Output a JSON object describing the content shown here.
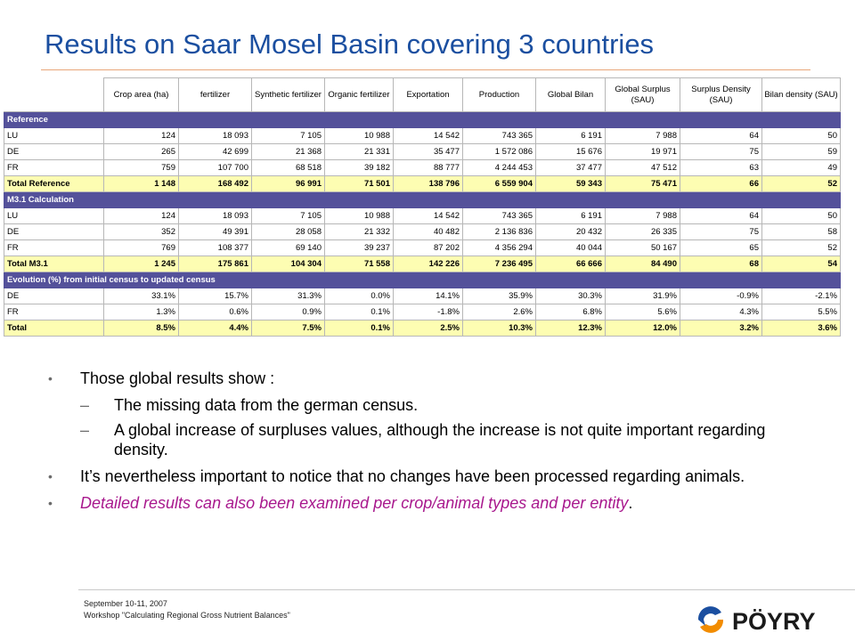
{
  "title": "Results on Saar Mosel Basin covering 3 countries",
  "table": {
    "headers": [
      "Crop area (ha)",
      "fertilizer",
      "Synthetic fertilizer",
      "Organic fertilizer",
      "Exportation",
      "Production",
      "Global Bilan",
      "Global Surplus (SAU)",
      "Surplus Density (SAU)",
      "Bilan density (SAU)"
    ],
    "sections": [
      {
        "label": "Reference",
        "rows": [
          {
            "label": "LU",
            "values": [
              "124",
              "18 093",
              "7 105",
              "10 988",
              "14 542",
              "743 365",
              "6 191",
              "7 988",
              "64",
              "50"
            ]
          },
          {
            "label": "DE",
            "values": [
              "265",
              "42 699",
              "21 368",
              "21 331",
              "35 477",
              "1 572 086",
              "15 676",
              "19 971",
              "75",
              "59"
            ]
          },
          {
            "label": "FR",
            "values": [
              "759",
              "107 700",
              "68 518",
              "39 182",
              "88 777",
              "4 244 453",
              "37 477",
              "47 512",
              "63",
              "49"
            ]
          }
        ],
        "total": {
          "label": "Total Reference",
          "values": [
            "1 148",
            "168 492",
            "96 991",
            "71 501",
            "138 796",
            "6 559 904",
            "59 343",
            "75 471",
            "66",
            "52"
          ]
        }
      },
      {
        "label": "M3.1 Calculation",
        "rows": [
          {
            "label": "LU",
            "values": [
              "124",
              "18 093",
              "7 105",
              "10 988",
              "14 542",
              "743 365",
              "6 191",
              "7 988",
              "64",
              "50"
            ]
          },
          {
            "label": "DE",
            "values": [
              "352",
              "49 391",
              "28 058",
              "21 332",
              "40 482",
              "2 136 836",
              "20 432",
              "26 335",
              "75",
              "58"
            ]
          },
          {
            "label": "FR",
            "values": [
              "769",
              "108 377",
              "69 140",
              "39 237",
              "87 202",
              "4 356 294",
              "40 044",
              "50 167",
              "65",
              "52"
            ]
          }
        ],
        "total": {
          "label": "Total M3.1",
          "values": [
            "1 245",
            "175 861",
            "104 304",
            "71 558",
            "142 226",
            "7 236 495",
            "66 666",
            "84 490",
            "68",
            "54"
          ]
        }
      },
      {
        "label": "Evolution (%) from initial census to updated census",
        "rows": [
          {
            "label": "DE",
            "values": [
              "33.1%",
              "15.7%",
              "31.3%",
              "0.0%",
              "14.1%",
              "35.9%",
              "30.3%",
              "31.9%",
              "-0.9%",
              "-2.1%"
            ]
          },
          {
            "label": "FR",
            "values": [
              "1.3%",
              "0.6%",
              "0.9%",
              "0.1%",
              "-1.8%",
              "2.6%",
              "6.8%",
              "5.6%",
              "4.3%",
              "5.5%"
            ]
          }
        ],
        "total": {
          "label": "Total",
          "values": [
            "8.5%",
            "4.4%",
            "7.5%",
            "0.1%",
            "2.5%",
            "10.3%",
            "12.3%",
            "12.0%",
            "3.2%",
            "3.6%"
          ]
        }
      }
    ]
  },
  "bullets": {
    "b1": "Those global results show :",
    "b1_sub1": "The missing data from the german census.",
    "b1_sub2": "A global increase of surpluses values, although the increase is not quite important regarding density.",
    "b2": "It’s nevertheless important to notice that no changes have been processed regarding animals.",
    "b3": "Detailed results can also been examined per crop/animal types and per entity",
    "b3_end": ".",
    "bullet_glyph": "•",
    "dash_glyph": "–"
  },
  "footer": {
    "date": "September 10-11, 2007",
    "workshop": "Workshop \"Calculating Regional Gross Nutrient Balances\""
  },
  "logo": {
    "text": "PÖYRY",
    "colors": {
      "blue": "#1b4fa0",
      "orange": "#f28c00",
      "text": "#1a1a1a"
    }
  },
  "colors": {
    "title": "#1b4fa0",
    "section_bg": "#54519a",
    "total_bg": "#fdfdb2",
    "italic_text": "#a8188d"
  }
}
